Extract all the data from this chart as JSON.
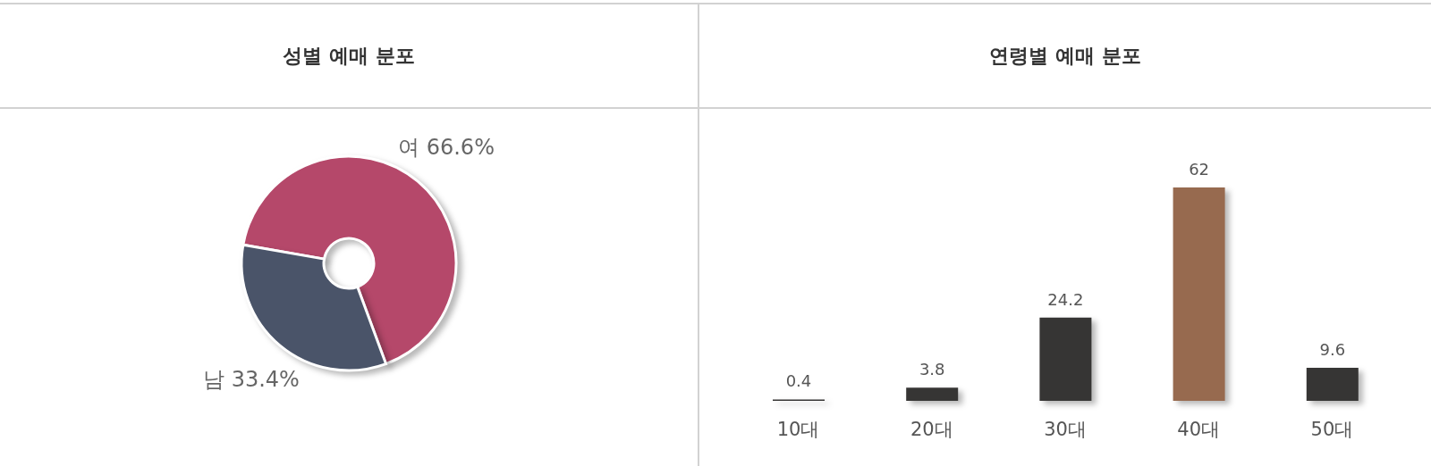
{
  "chart_data": [
    {
      "type": "donut",
      "title": "성별 예매 분포",
      "categories": [
        "여",
        "남"
      ],
      "values": [
        66.6,
        33.4
      ],
      "colors": [
        "#b5486a",
        "#4a5469"
      ],
      "value_labels": [
        "66.6%",
        "33.4%"
      ]
    },
    {
      "type": "bar",
      "title": "연령별 예매 분포",
      "categories": [
        "10대",
        "20대",
        "30대",
        "40대",
        "50대"
      ],
      "values": [
        0.4,
        3.8,
        24.2,
        62,
        9.6
      ],
      "colors": [
        "#363534",
        "#363534",
        "#363534",
        "#976a4f",
        "#363534"
      ],
      "data_labels": true
    }
  ]
}
